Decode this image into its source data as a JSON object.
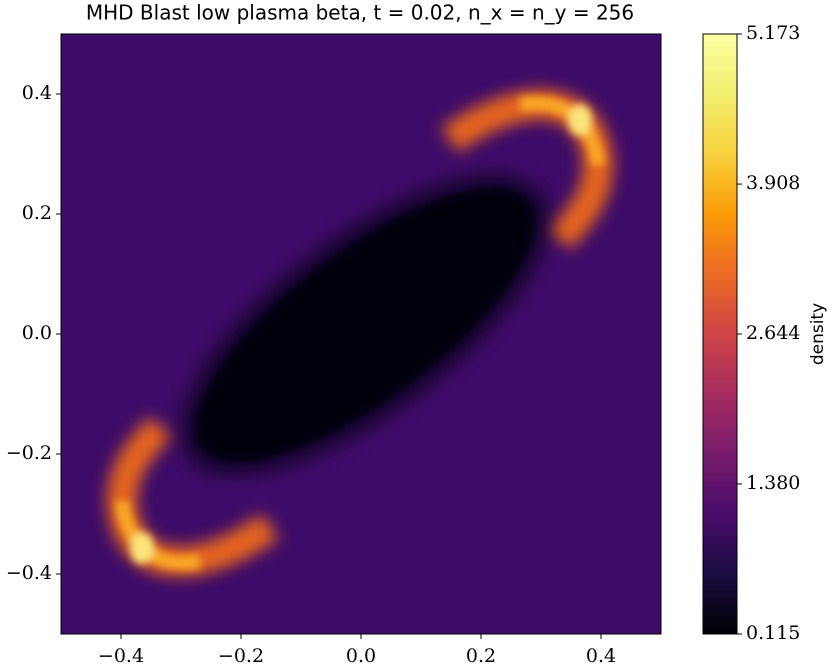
{
  "chart_data": {
    "type": "heatmap",
    "title": "MHD Blast low plasma beta, t = 0.02, n_x = n_y = 256",
    "colorbar_label": "density",
    "colormap": "inferno",
    "xlim": [
      -0.5,
      0.5
    ],
    "ylim": [
      -0.5,
      0.5
    ],
    "xticks": [
      {
        "value": -0.4,
        "label": "−0.4"
      },
      {
        "value": -0.2,
        "label": "−0.2"
      },
      {
        "value": 0,
        "label": "0.0"
      },
      0.2,
      0.4
    ],
    "yticks": [
      {
        "value": -0.4,
        "label": "−0.4"
      },
      {
        "value": -0.2,
        "label": "−0.2"
      },
      {
        "value": 0,
        "label": "0.0"
      },
      0.2,
      0.4
    ],
    "clim": [
      0.115,
      5.173
    ],
    "cticks": [
      0.115,
      {
        "value": 1.38,
        "label": "1.380"
      },
      2.644,
      3.908,
      5.173
    ]
  }
}
